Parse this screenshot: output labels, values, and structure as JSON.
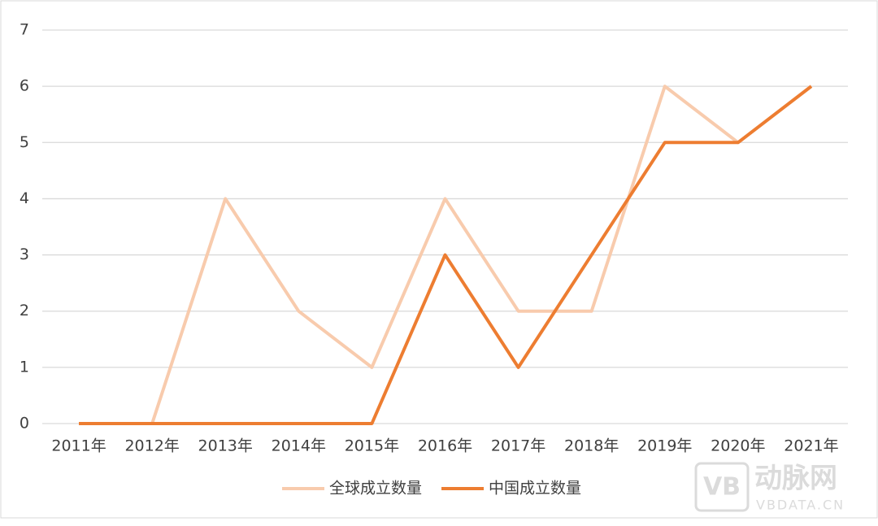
{
  "chart_data": {
    "type": "line",
    "categories": [
      "2011年",
      "2012年",
      "2013年",
      "2014年",
      "2015年",
      "2016年",
      "2017年",
      "2018年",
      "2019年",
      "2020年",
      "2021年"
    ],
    "series": [
      {
        "name": "全球成立数量",
        "color": "#f8cbad",
        "values": [
          0,
          0,
          4,
          2,
          1,
          4,
          2,
          2,
          6,
          5,
          6
        ]
      },
      {
        "name": "中国成立数量",
        "color": "#ed7d31",
        "values": [
          0,
          0,
          0,
          0,
          0,
          3,
          1,
          3,
          5,
          5,
          6
        ]
      }
    ],
    "ylim": [
      0,
      7
    ],
    "yticks": [
      0,
      1,
      2,
      3,
      4,
      5,
      6,
      7
    ],
    "grid": true,
    "legend": "bottom",
    "watermark": {
      "logo": "VB",
      "name": "动脉网",
      "url": "VBDATA.CN"
    }
  }
}
